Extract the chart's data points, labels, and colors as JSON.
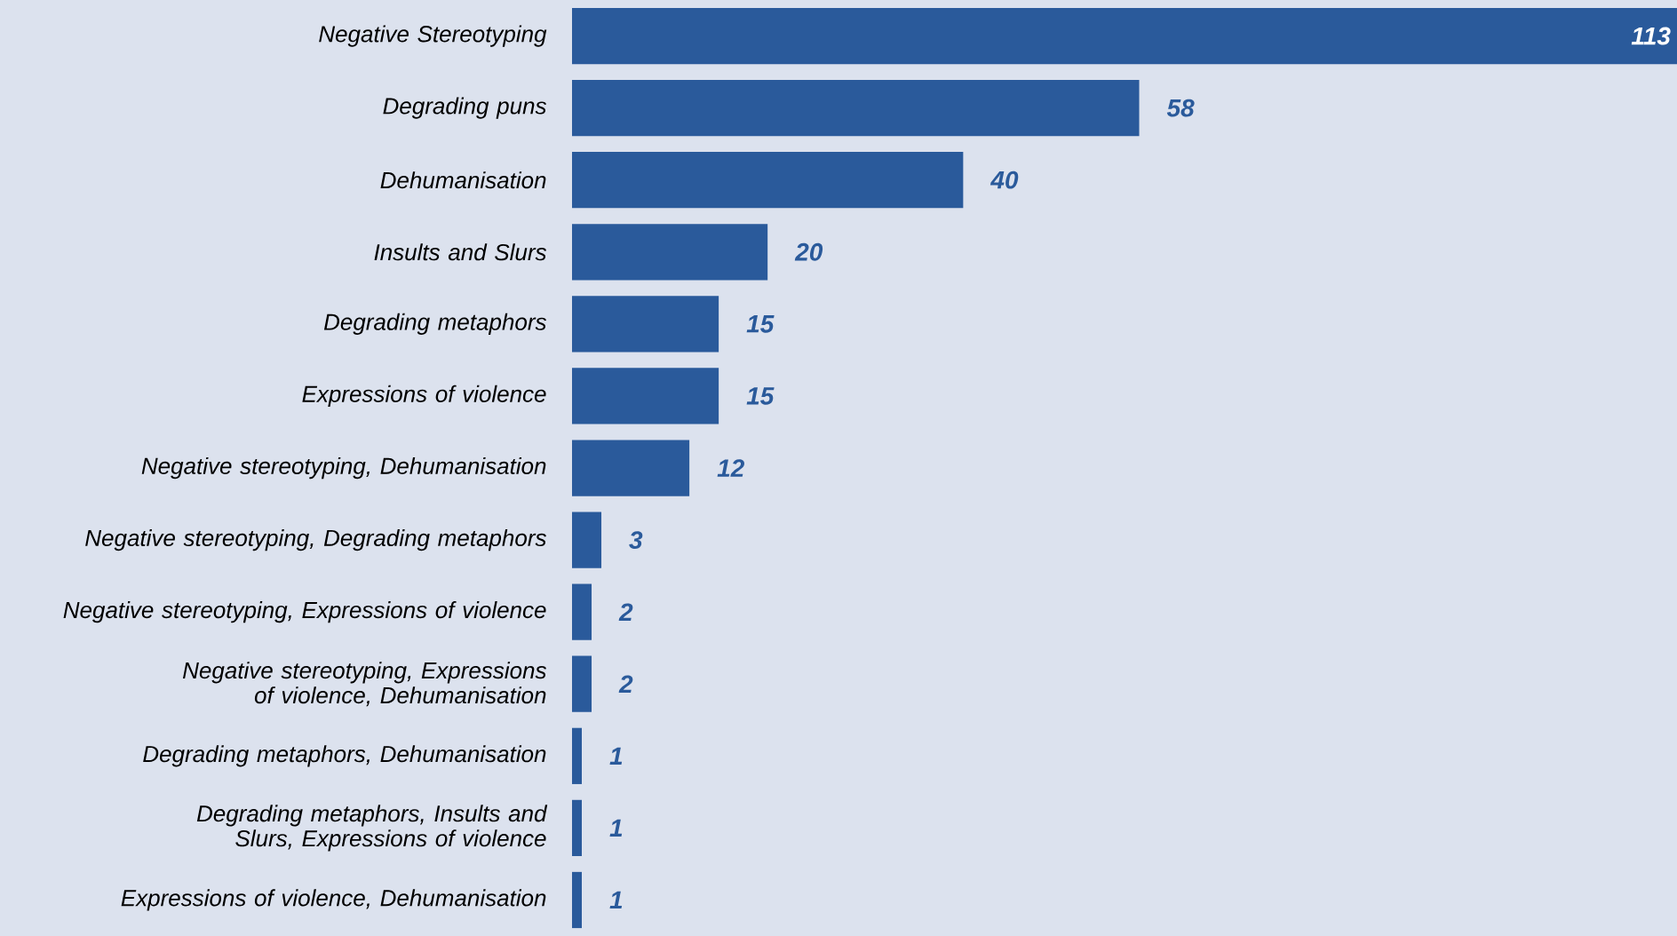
{
  "chart_data": {
    "type": "bar",
    "orientation": "horizontal",
    "data_labels": true,
    "color": "#2a5a9b",
    "categories": [
      "Negative Stereotyping",
      "Degrading puns",
      "Dehumanisation",
      "Insults and Slurs",
      "Degrading metaphors",
      "Expressions of violence",
      "Negative stereotyping, Dehumanisation",
      "Negative stereotyping, Degrading metaphors",
      "Negative stereotyping, Expressions of violence",
      "Negative stereotyping, Expressions of violence, Dehumanisation",
      "Degrading metaphors, Dehumanisation",
      "Degrading metaphors, Insults and Slurs, Expressions of violence",
      "Expressions of violence, Dehumanisation"
    ],
    "values": [
      113,
      58,
      40,
      20,
      15,
      15,
      12,
      3,
      2,
      2,
      1,
      1,
      1
    ]
  }
}
